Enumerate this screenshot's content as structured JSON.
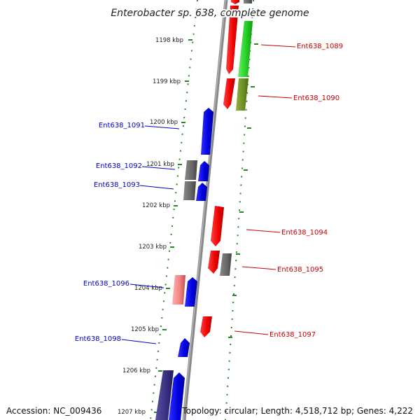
{
  "title": "Enterobacter sp. 638, complete genome",
  "ticks": [
    "1198 kbp",
    "1199 kbp",
    "1200 kbp",
    "1201 kbp",
    "1202 kbp",
    "1203 kbp",
    "1204 kbp",
    "1205 kbp",
    "1206 kbp",
    "1207 kbp"
  ],
  "genes": {
    "right": [
      "Ent638_1089",
      "Ent638_1090",
      "Ent638_1094",
      "Ent638_1095",
      "Ent638_1097"
    ],
    "left": [
      "Ent638_1091",
      "Ent638_1092",
      "Ent638_1093",
      "Ent638_1096",
      "Ent638_1098"
    ]
  },
  "colors": {
    "forward_strand": "#0000dd",
    "reverse_strand": "#ee0000",
    "green_feature": "#22cc22",
    "olive_feature": "#6b8e23",
    "gray_feature": "#666666",
    "pink_feature": "#f08080",
    "purple_feature": "#3a3080",
    "tick": "#228b22",
    "backbone": "#888888"
  },
  "footer": {
    "accession": "Accession: NC_009436",
    "summary": "Topology: circular; Length: 4,518,712 bp; Genes: 4,222"
  }
}
